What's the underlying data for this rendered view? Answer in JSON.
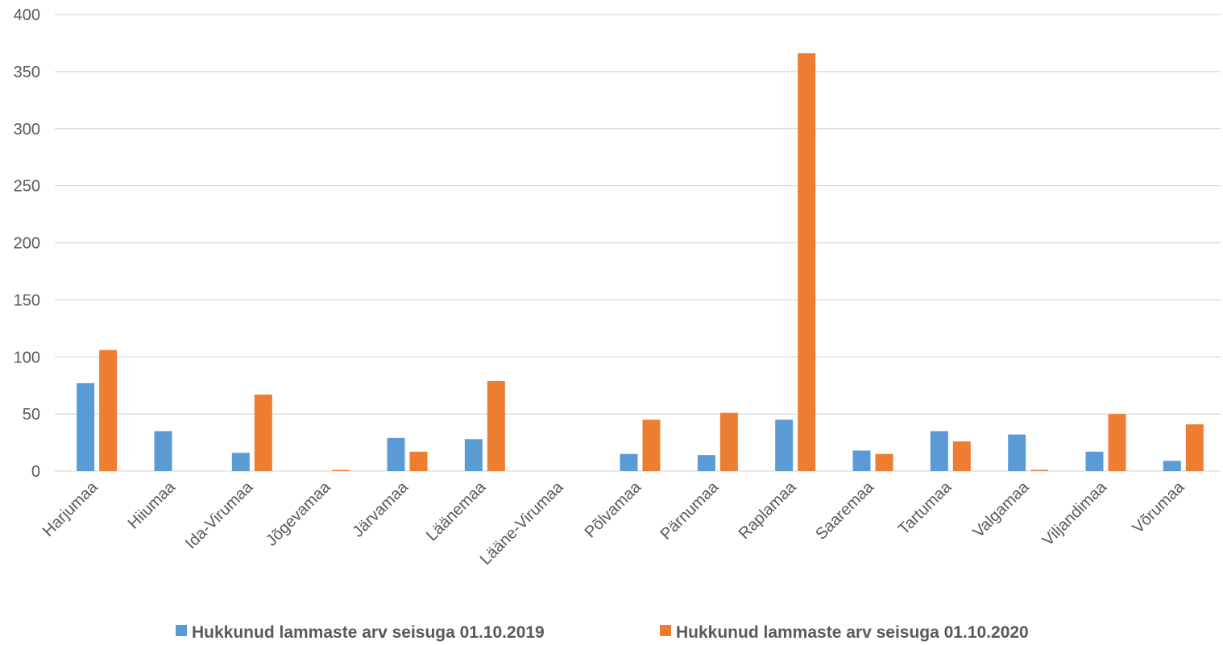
{
  "chart_data": {
    "type": "bar",
    "ylim": [
      0,
      400
    ],
    "yticks": [
      "0",
      "50",
      "100",
      "150",
      "200",
      "250",
      "300",
      "350",
      "400"
    ],
    "grid": true,
    "legend_position": "bottom",
    "categories": [
      "Harjumaa",
      "Hiiumaa",
      "Ida-Virumaa",
      "Jõgevamaa",
      "Järvamaa",
      "Läänemaa",
      "Lääne-Virumaa",
      "Põlvamaa",
      "Pärnumaa",
      "Raplamaa",
      "Saaremaa",
      "Tartumaa",
      "Valgamaa",
      "Viljandimaa",
      "Võrumaa"
    ],
    "series": [
      {
        "name": "Hukkunud lammaste arv seisuga 01.10.2019",
        "color": "#5B9BD5",
        "values": [
          77,
          35,
          16,
          0,
          29,
          28,
          0,
          15,
          14,
          45,
          18,
          35,
          32,
          17,
          9
        ]
      },
      {
        "name": "Hukkunud lammaste arv seisuga 01.10.2020",
        "color": "#ED7D31",
        "values": [
          106,
          0,
          67,
          1,
          17,
          79,
          0,
          45,
          51,
          366,
          15,
          26,
          1,
          50,
          41
        ]
      }
    ]
  }
}
